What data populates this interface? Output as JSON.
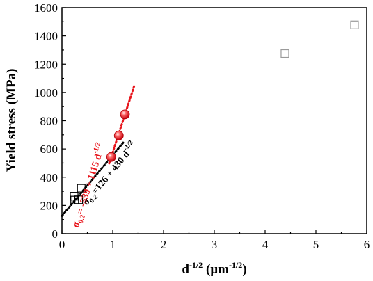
{
  "chart_data": {
    "type": "scatter",
    "xlabel": {
      "base": "d",
      "base_sup": "-1/2",
      "unit": " (μm",
      "unit_sup": "-1/2",
      "unit_close": ")"
    },
    "ylabel": "Yield stress (MPa)",
    "xlim": [
      0,
      6
    ],
    "ylim": [
      0,
      1600
    ],
    "x_ticks": [
      "0",
      "1",
      "2",
      "3",
      "4",
      "5",
      "6"
    ],
    "y_ticks": [
      "0",
      "200",
      "400",
      "600",
      "800",
      "1000",
      "1200",
      "1400",
      "1600"
    ],
    "grid": false,
    "series": [
      {
        "marker": "open-square",
        "color": "#000000",
        "points": [
          [
            0.24,
            265
          ],
          [
            0.25,
            238
          ],
          [
            0.33,
            240
          ],
          [
            0.38,
            322
          ]
        ]
      },
      {
        "marker": "red-sphere",
        "color": "#e8141b",
        "points": [
          [
            0.97,
            543
          ],
          [
            1.12,
            695
          ],
          [
            1.24,
            845
          ]
        ]
      },
      {
        "marker": "open-square",
        "color": "#9a9a9a",
        "points": [
          [
            4.39,
            1275
          ],
          [
            5.76,
            1478
          ]
        ]
      }
    ],
    "fits": [
      {
        "color": "#000000",
        "intercept": 126,
        "slope": 430,
        "x_range": [
          0.0,
          1.22
        ],
        "label": {
          "sigma": "σ",
          "sub": "0.2",
          "body": "=126 + 430 d",
          "sup": "-1/2"
        }
      },
      {
        "color": "#e8141b",
        "intercept": -539,
        "slope": 1115,
        "x_range": [
          0.93,
          1.43
        ],
        "label": {
          "sigma": "σ",
          "sub": "0.2",
          "body": "= -539 + 1115 d",
          "sup": "-1/2"
        }
      }
    ]
  }
}
